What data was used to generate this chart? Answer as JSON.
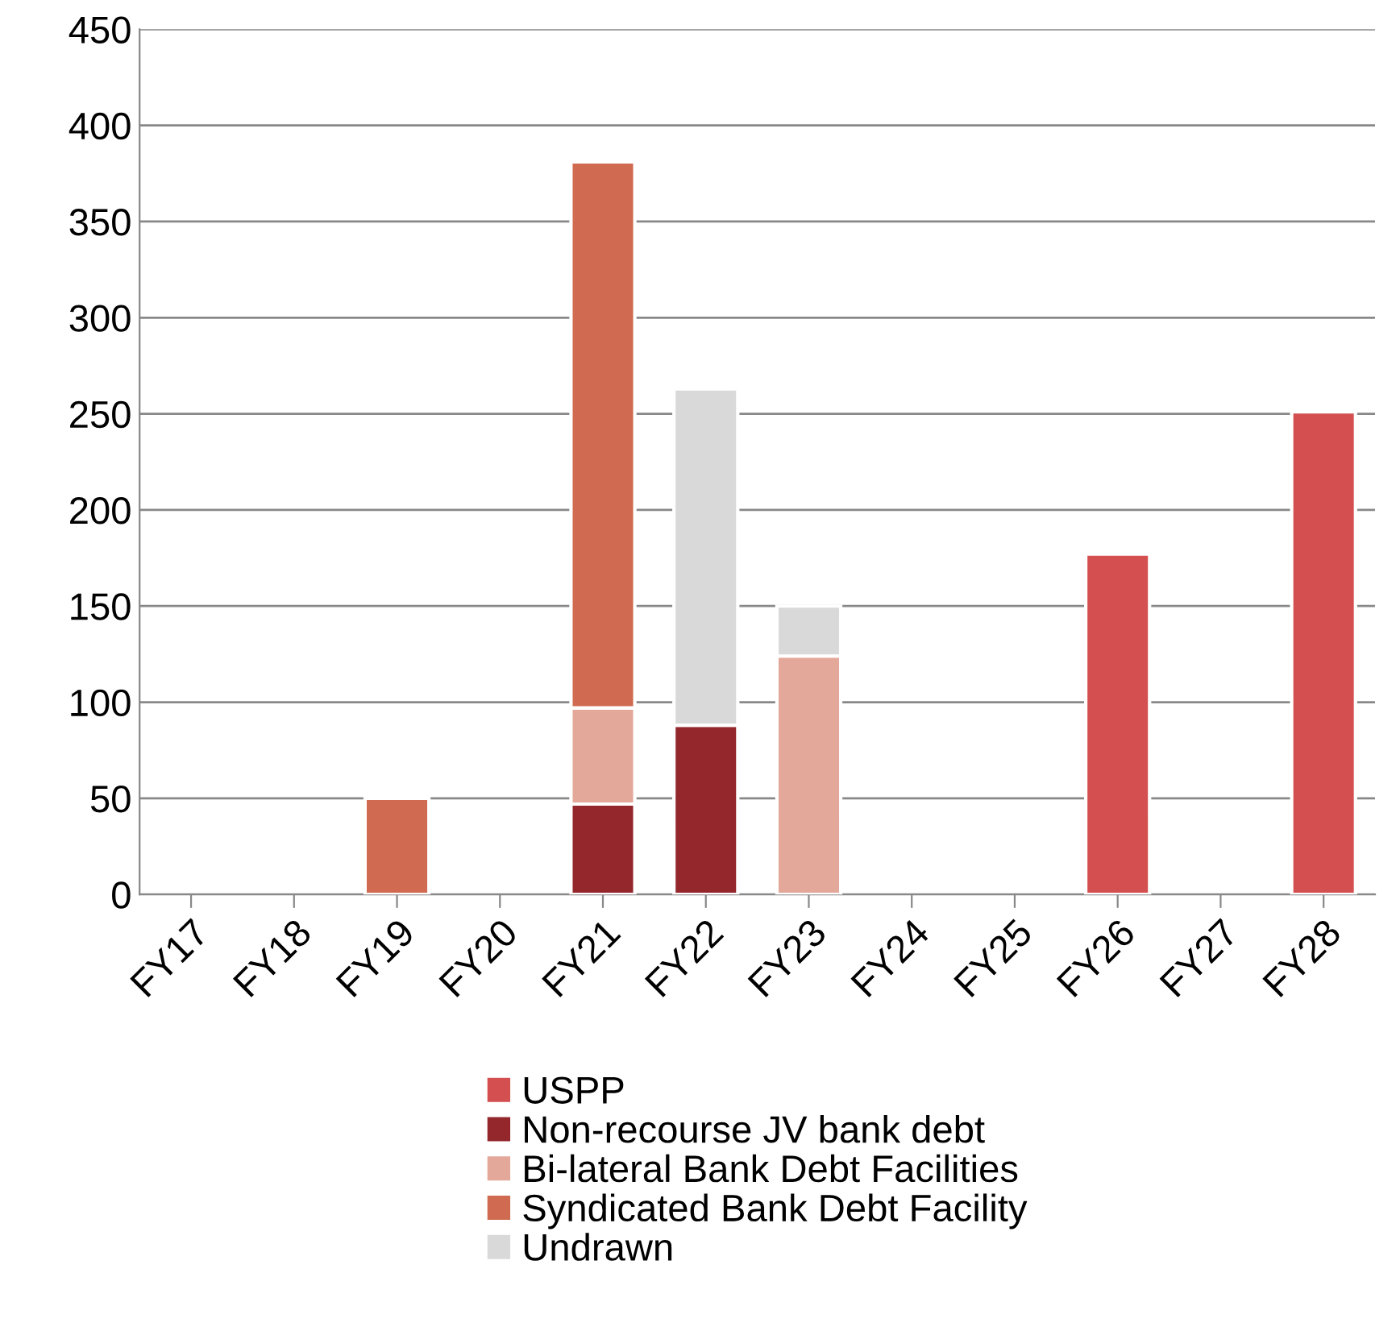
{
  "chart_data": {
    "type": "bar",
    "stacked": true,
    "categories": [
      "FY17",
      "FY18",
      "FY19",
      "FY20",
      "FY21",
      "FY22",
      "FY23",
      "FY24",
      "FY25",
      "FY26",
      "FY27",
      "FY28"
    ],
    "series": [
      {
        "name": "USPP",
        "color": "#d45050",
        "values": [
          null,
          null,
          null,
          null,
          null,
          null,
          null,
          null,
          null,
          177,
          null,
          251
        ]
      },
      {
        "name": "Non-recourse JV bank debt",
        "color": "#93272c",
        "values": [
          null,
          null,
          null,
          null,
          47,
          88,
          null,
          null,
          null,
          null,
          null,
          null
        ]
      },
      {
        "name": "Bi-lateral Bank Debt Facilities",
        "color": "#e3a89a",
        "values": [
          null,
          null,
          null,
          null,
          50,
          null,
          124,
          null,
          null,
          null,
          null,
          null
        ]
      },
      {
        "name": "Syndicated Bank Debt Facility",
        "color": "#d06a50",
        "values": [
          null,
          null,
          50,
          null,
          284,
          null,
          null,
          null,
          null,
          null,
          null,
          null
        ]
      },
      {
        "name": "Undrawn",
        "color": "#d9d9d9",
        "values": [
          null,
          null,
          null,
          null,
          null,
          175,
          26,
          null,
          null,
          null,
          null,
          null
        ]
      }
    ],
    "ylim": [
      0,
      450
    ],
    "yticks": [
      0,
      50,
      100,
      150,
      200,
      250,
      300,
      350,
      400,
      450
    ],
    "grid": "y",
    "legend": "bottom"
  }
}
